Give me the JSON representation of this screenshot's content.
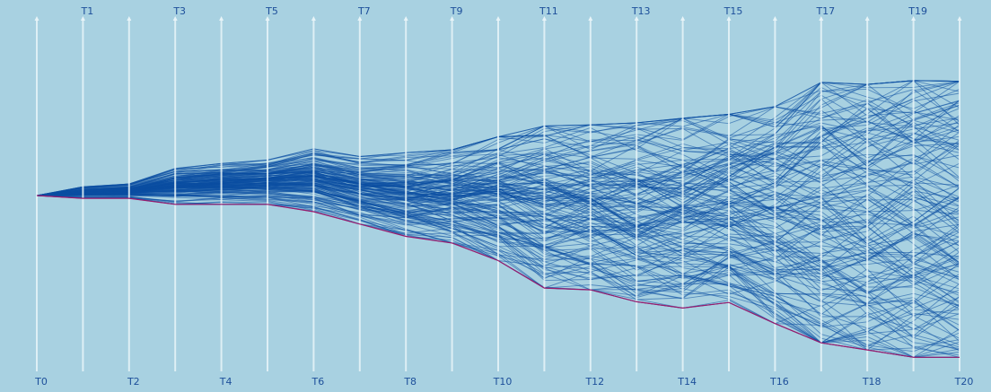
{
  "colors": {
    "background": "#a8d1e1",
    "axis": "#e8f4f8",
    "paths": "#0b4fa3",
    "highlight": "#9a1a6c",
    "label": "#1d4f9a"
  },
  "chart_data": {
    "type": "parallel-coordinates",
    "title": "",
    "axes": [
      "T0",
      "T1",
      "T2",
      "T3",
      "T4",
      "T5",
      "T6",
      "T7",
      "T8",
      "T9",
      "T10",
      "T11",
      "T12",
      "T13",
      "T14",
      "T15",
      "T16",
      "T17",
      "T18",
      "T19",
      "T20"
    ],
    "label_rows": [
      "bottom",
      "top",
      "bottom",
      "top",
      "bottom",
      "top",
      "bottom",
      "top",
      "bottom",
      "top",
      "bottom",
      "top",
      "bottom",
      "top",
      "bottom",
      "top",
      "bottom",
      "top",
      "bottom",
      "top",
      "bottom"
    ],
    "yrange": [
      0,
      100
    ],
    "series_count": 160,
    "random_seed": 7,
    "envelope": {
      "upper": [
        50.0,
        52.5,
        53.3,
        57.7,
        59.1,
        60.1,
        63.3,
        61.1,
        62.2,
        63.0,
        66.7,
        69.8,
        70.1,
        70.7,
        72.0,
        73.1,
        75.3,
        82.2,
        81.6,
        82.7,
        82.5
      ],
      "lower": [
        50.0,
        49.2,
        49.2,
        47.5,
        47.5,
        47.5,
        45.4,
        41.9,
        38.4,
        36.5,
        31.5,
        23.7,
        23.2,
        19.8,
        18.0,
        19.6,
        13.6,
        8.1,
        6.1,
        4.0,
        4.0
      ]
    },
    "highlight_series": {
      "name": "",
      "values": [
        50.0,
        49.2,
        49.2,
        47.5,
        47.5,
        47.5,
        45.4,
        41.9,
        38.4,
        36.5,
        31.5,
        23.7,
        23.2,
        19.8,
        18.0,
        19.6,
        13.6,
        8.1,
        6.1,
        4.0,
        4.0
      ]
    },
    "grid": false,
    "legend": "none"
  }
}
